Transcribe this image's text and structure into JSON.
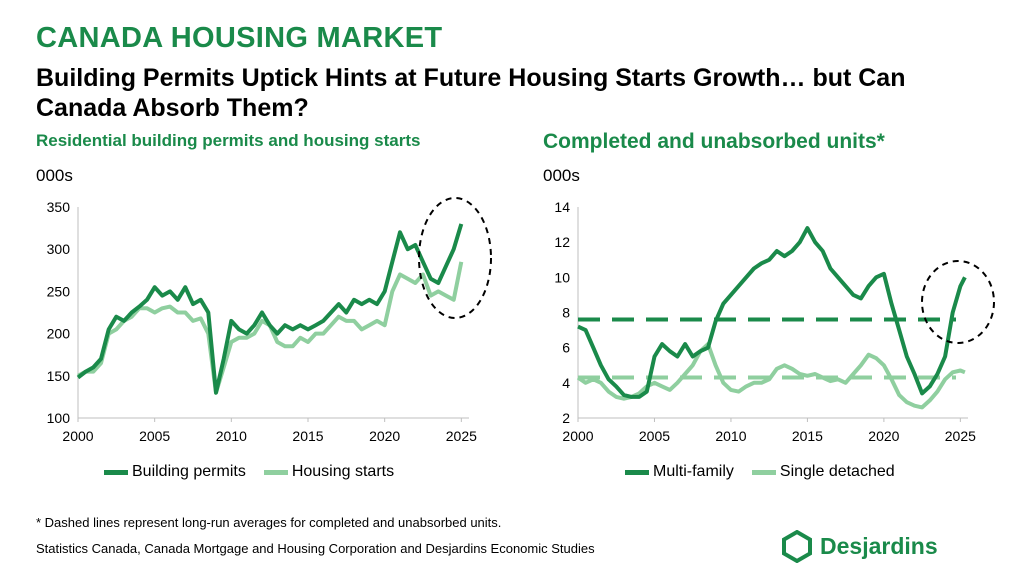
{
  "header": {
    "kicker": "CANADA HOUSING MARKET",
    "headline": "Building Permits Uptick Hints at Future Housing Starts Growth… but Can Canada Absorb Them?"
  },
  "colors": {
    "dark_green": "#1a8a4a",
    "light_green": "#8fcf9f",
    "title_green": "#1a8a4a"
  },
  "chart_data": [
    {
      "type": "line",
      "title": "Residential building permits and housing starts",
      "unit_label": "000s",
      "xlim": [
        2000,
        2025.5
      ],
      "ylim": [
        100,
        350
      ],
      "x_ticks": [
        2000,
        2005,
        2010,
        2015,
        2020,
        2025
      ],
      "y_ticks": [
        100,
        150,
        200,
        250,
        300,
        350
      ],
      "annotation": "dashed ellipse highlighting 2023-2025",
      "legend_placement": "bottom",
      "series": [
        {
          "name": "Building permits",
          "color": "#1a8a4a",
          "points": [
            [
              2000.0,
              148
            ],
            [
              2000.5,
              155
            ],
            [
              2001.0,
              160
            ],
            [
              2001.5,
              170
            ],
            [
              2002.0,
              205
            ],
            [
              2002.5,
              220
            ],
            [
              2003.0,
              215
            ],
            [
              2003.5,
              225
            ],
            [
              2004.0,
              232
            ],
            [
              2004.5,
              240
            ],
            [
              2005.0,
              255
            ],
            [
              2005.5,
              245
            ],
            [
              2006.0,
              250
            ],
            [
              2006.5,
              240
            ],
            [
              2007.0,
              255
            ],
            [
              2007.5,
              235
            ],
            [
              2008.0,
              240
            ],
            [
              2008.5,
              225
            ],
            [
              2009.0,
              130
            ],
            [
              2009.5,
              170
            ],
            [
              2010.0,
              215
            ],
            [
              2010.5,
              205
            ],
            [
              2011.0,
              200
            ],
            [
              2011.5,
              210
            ],
            [
              2012.0,
              225
            ],
            [
              2012.5,
              210
            ],
            [
              2013.0,
              200
            ],
            [
              2013.5,
              210
            ],
            [
              2014.0,
              205
            ],
            [
              2014.5,
              210
            ],
            [
              2015.0,
              205
            ],
            [
              2015.5,
              210
            ],
            [
              2016.0,
              215
            ],
            [
              2016.5,
              225
            ],
            [
              2017.0,
              235
            ],
            [
              2017.5,
              225
            ],
            [
              2018.0,
              240
            ],
            [
              2018.5,
              235
            ],
            [
              2019.0,
              240
            ],
            [
              2019.5,
              235
            ],
            [
              2020.0,
              250
            ],
            [
              2020.5,
              285
            ],
            [
              2021.0,
              320
            ],
            [
              2021.5,
              300
            ],
            [
              2022.0,
              305
            ],
            [
              2022.5,
              285
            ],
            [
              2023.0,
              265
            ],
            [
              2023.5,
              260
            ],
            [
              2024.0,
              280
            ],
            [
              2024.5,
              300
            ],
            [
              2025.0,
              330
            ]
          ]
        },
        {
          "name": "Housing starts",
          "color": "#8fcf9f",
          "points": [
            [
              2000.0,
              150
            ],
            [
              2000.5,
              155
            ],
            [
              2001.0,
              155
            ],
            [
              2001.5,
              165
            ],
            [
              2002.0,
              200
            ],
            [
              2002.5,
              205
            ],
            [
              2003.0,
              215
            ],
            [
              2003.5,
              220
            ],
            [
              2004.0,
              230
            ],
            [
              2004.5,
              230
            ],
            [
              2005.0,
              225
            ],
            [
              2005.5,
              230
            ],
            [
              2006.0,
              232
            ],
            [
              2006.5,
              225
            ],
            [
              2007.0,
              225
            ],
            [
              2007.5,
              215
            ],
            [
              2008.0,
              218
            ],
            [
              2008.5,
              200
            ],
            [
              2009.0,
              130
            ],
            [
              2009.5,
              160
            ],
            [
              2010.0,
              190
            ],
            [
              2010.5,
              195
            ],
            [
              2011.0,
              195
            ],
            [
              2011.5,
              200
            ],
            [
              2012.0,
              215
            ],
            [
              2012.5,
              210
            ],
            [
              2013.0,
              190
            ],
            [
              2013.5,
              185
            ],
            [
              2014.0,
              185
            ],
            [
              2014.5,
              195
            ],
            [
              2015.0,
              190
            ],
            [
              2015.5,
              200
            ],
            [
              2016.0,
              200
            ],
            [
              2016.5,
              210
            ],
            [
              2017.0,
              220
            ],
            [
              2017.5,
              215
            ],
            [
              2018.0,
              215
            ],
            [
              2018.5,
              205
            ],
            [
              2019.0,
              210
            ],
            [
              2019.5,
              215
            ],
            [
              2020.0,
              210
            ],
            [
              2020.5,
              250
            ],
            [
              2021.0,
              270
            ],
            [
              2021.5,
              265
            ],
            [
              2022.0,
              260
            ],
            [
              2022.5,
              270
            ],
            [
              2023.0,
              245
            ],
            [
              2023.5,
              250
            ],
            [
              2024.0,
              245
            ],
            [
              2024.5,
              240
            ],
            [
              2025.0,
              285
            ]
          ]
        }
      ]
    },
    {
      "type": "line",
      "title": "Completed and unabsorbed units*",
      "unit_label": "000s",
      "xlim": [
        2000,
        2025.5
      ],
      "ylim": [
        2,
        14
      ],
      "x_ticks": [
        2000,
        2005,
        2010,
        2015,
        2020,
        2025
      ],
      "y_ticks": [
        2,
        4,
        6,
        8,
        10,
        12,
        14
      ],
      "annotation": "dashed ellipse highlighting 2024-2025",
      "legend_placement": "bottom",
      "series": [
        {
          "name": "Multi-family",
          "color": "#1a8a4a",
          "average": 7.6,
          "points": [
            [
              2000.0,
              7.2
            ],
            [
              2000.5,
              7.0
            ],
            [
              2001.0,
              6.0
            ],
            [
              2001.5,
              5.0
            ],
            [
              2002.0,
              4.2
            ],
            [
              2002.5,
              3.8
            ],
            [
              2003.0,
              3.3
            ],
            [
              2003.5,
              3.2
            ],
            [
              2004.0,
              3.2
            ],
            [
              2004.5,
              3.5
            ],
            [
              2005.0,
              5.5
            ],
            [
              2005.5,
              6.2
            ],
            [
              2006.0,
              5.8
            ],
            [
              2006.5,
              5.5
            ],
            [
              2007.0,
              6.2
            ],
            [
              2007.5,
              5.5
            ],
            [
              2008.0,
              5.8
            ],
            [
              2008.5,
              6.0
            ],
            [
              2009.0,
              7.5
            ],
            [
              2009.5,
              8.5
            ],
            [
              2010.0,
              9.0
            ],
            [
              2010.5,
              9.5
            ],
            [
              2011.0,
              10.0
            ],
            [
              2011.5,
              10.5
            ],
            [
              2012.0,
              10.8
            ],
            [
              2012.5,
              11.0
            ],
            [
              2013.0,
              11.5
            ],
            [
              2013.5,
              11.2
            ],
            [
              2014.0,
              11.5
            ],
            [
              2014.5,
              12.0
            ],
            [
              2015.0,
              12.8
            ],
            [
              2015.5,
              12.0
            ],
            [
              2016.0,
              11.5
            ],
            [
              2016.5,
              10.5
            ],
            [
              2017.0,
              10.0
            ],
            [
              2017.5,
              9.5
            ],
            [
              2018.0,
              9.0
            ],
            [
              2018.5,
              8.8
            ],
            [
              2019.0,
              9.5
            ],
            [
              2019.5,
              10.0
            ],
            [
              2020.0,
              10.2
            ],
            [
              2020.5,
              8.5
            ],
            [
              2021.0,
              7.0
            ],
            [
              2021.5,
              5.5
            ],
            [
              2022.0,
              4.5
            ],
            [
              2022.5,
              3.4
            ],
            [
              2023.0,
              3.8
            ],
            [
              2023.5,
              4.5
            ],
            [
              2024.0,
              5.5
            ],
            [
              2024.5,
              8.0
            ],
            [
              2025.0,
              9.5
            ],
            [
              2025.3,
              10.0
            ]
          ]
        },
        {
          "name": "Single detached",
          "color": "#8fcf9f",
          "average": 4.3,
          "points": [
            [
              2000.0,
              4.3
            ],
            [
              2000.5,
              4.0
            ],
            [
              2001.0,
              4.2
            ],
            [
              2001.5,
              4.0
            ],
            [
              2002.0,
              3.5
            ],
            [
              2002.5,
              3.2
            ],
            [
              2003.0,
              3.1
            ],
            [
              2003.5,
              3.2
            ],
            [
              2004.0,
              3.4
            ],
            [
              2004.5,
              3.8
            ],
            [
              2005.0,
              4.0
            ],
            [
              2005.5,
              3.8
            ],
            [
              2006.0,
              3.6
            ],
            [
              2006.5,
              4.0
            ],
            [
              2007.0,
              4.5
            ],
            [
              2007.5,
              5.0
            ],
            [
              2008.0,
              5.8
            ],
            [
              2008.5,
              6.2
            ],
            [
              2009.0,
              5.0
            ],
            [
              2009.5,
              4.0
            ],
            [
              2010.0,
              3.6
            ],
            [
              2010.5,
              3.5
            ],
            [
              2011.0,
              3.8
            ],
            [
              2011.5,
              4.0
            ],
            [
              2012.0,
              4.0
            ],
            [
              2012.5,
              4.2
            ],
            [
              2013.0,
              4.8
            ],
            [
              2013.5,
              5.0
            ],
            [
              2014.0,
              4.8
            ],
            [
              2014.5,
              4.5
            ],
            [
              2015.0,
              4.4
            ],
            [
              2015.5,
              4.5
            ],
            [
              2016.0,
              4.3
            ],
            [
              2016.5,
              4.1
            ],
            [
              2017.0,
              4.2
            ],
            [
              2017.5,
              4.0
            ],
            [
              2018.0,
              4.5
            ],
            [
              2018.5,
              5.0
            ],
            [
              2019.0,
              5.6
            ],
            [
              2019.5,
              5.4
            ],
            [
              2020.0,
              5.0
            ],
            [
              2020.5,
              4.2
            ],
            [
              2021.0,
              3.3
            ],
            [
              2021.5,
              2.9
            ],
            [
              2022.0,
              2.7
            ],
            [
              2022.5,
              2.6
            ],
            [
              2023.0,
              3.0
            ],
            [
              2023.5,
              3.5
            ],
            [
              2024.0,
              4.2
            ],
            [
              2024.5,
              4.6
            ],
            [
              2025.0,
              4.7
            ],
            [
              2025.3,
              4.6
            ]
          ]
        }
      ]
    }
  ],
  "footer": {
    "note": "* Dashed lines represent long-run averages for completed and unabsorbed units.",
    "source": "Statistics Canada, Canada Mortgage and Housing Corporation and Desjardins Economic Studies",
    "logo_text": "Desjardins"
  }
}
